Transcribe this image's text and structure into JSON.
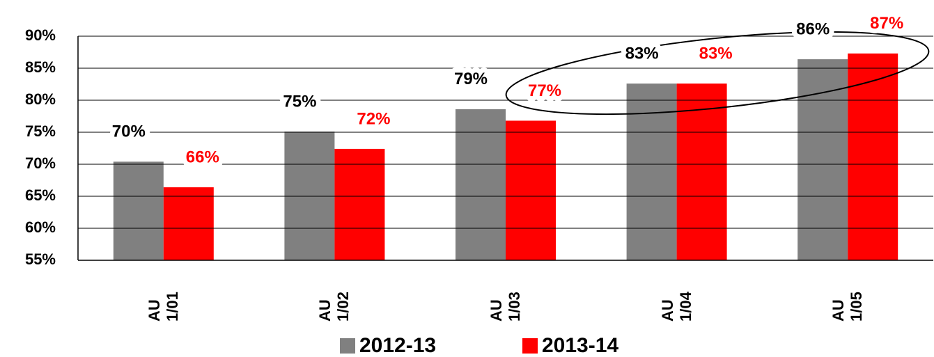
{
  "chart_data": {
    "type": "bar",
    "categories": [
      "AU 1/01",
      "AU 1/02",
      "AU 1/03",
      "AU 1/04",
      "AU 1/05"
    ],
    "series": [
      {
        "name": "2012-13",
        "color": "#808080",
        "values": [
          70.4,
          75.1,
          78.6,
          82.6,
          86.4
        ],
        "value_labels": [
          "70%",
          "75%",
          "79%",
          "83%",
          "86%"
        ],
        "label_color": "#000000"
      },
      {
        "name": "2013-14",
        "color": "#ff0000",
        "values": [
          66.4,
          72.4,
          76.8,
          82.6,
          87.3
        ],
        "value_labels": [
          "66%",
          "72%",
          "77%",
          "83%",
          "87%"
        ],
        "label_color": "#ff0000"
      }
    ],
    "ylim": [
      55,
      90
    ],
    "yticks": [
      {
        "value": 55,
        "label": "55%"
      },
      {
        "value": 60,
        "label": "60%"
      },
      {
        "value": 65,
        "label": "65%"
      },
      {
        "value": 70,
        "label": "70%"
      },
      {
        "value": 75,
        "label": "75%"
      },
      {
        "value": 80,
        "label": "80%"
      },
      {
        "value": 85,
        "label": "85%"
      },
      {
        "value": 90,
        "label": "90%"
      }
    ],
    "grid": true,
    "legend": "bottom"
  }
}
